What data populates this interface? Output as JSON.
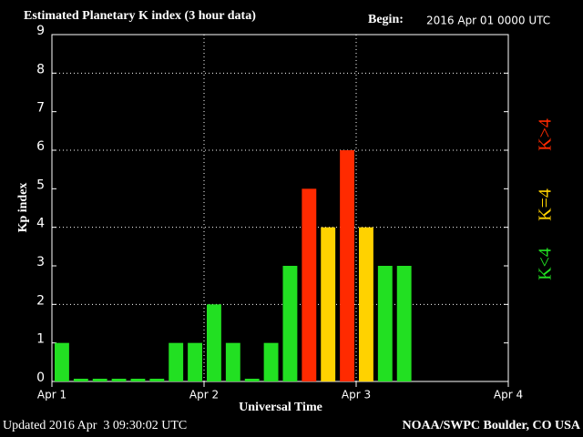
{
  "chart_data": {
    "type": "bar",
    "title": "Estimated Planetary K index (3 hour data)",
    "begin_label": "Begin:",
    "begin_value": "2016 Apr 01 0000 UTC",
    "y_label": "Kp index",
    "x_label": "Universal Time",
    "footer_left": "Updated 2016 Apr  3 09:30:02 UTC",
    "footer_right": "NOAA/SWPC Boulder, CO USA",
    "x": [
      0,
      3,
      6,
      9,
      12,
      15,
      18,
      21,
      24,
      27,
      30,
      33,
      36,
      39,
      42,
      45,
      48,
      51,
      54
    ],
    "values": [
      1,
      0,
      0,
      0,
      0,
      0,
      1,
      1,
      2,
      1,
      0,
      1,
      3,
      5,
      4,
      6,
      4,
      3,
      3
    ],
    "colors": [
      "#22e022",
      "#22e022",
      "#22e022",
      "#22e022",
      "#22e022",
      "#22e022",
      "#22e022",
      "#22e022",
      "#22e022",
      "#22e022",
      "#22e022",
      "#22e022",
      "#22e022",
      "#ff2a00",
      "#ffd200",
      "#ff2a00",
      "#ffd200",
      "#22e022",
      "#22e022"
    ],
    "xlim": [
      0,
      72
    ],
    "xticks": [
      {
        "value": 0,
        "label": "Apr 1"
      },
      {
        "value": 24,
        "label": "Apr 2"
      },
      {
        "value": 48,
        "label": "Apr 3"
      },
      {
        "value": 72,
        "label": "Apr 4"
      }
    ],
    "ylim": [
      0,
      9
    ],
    "yticks": [
      0,
      1,
      2,
      3,
      4,
      5,
      6,
      7,
      8,
      9
    ],
    "ygrid": [
      2,
      4,
      6,
      8
    ],
    "xgrid": [
      24,
      48
    ],
    "legend": [
      {
        "label": "K<4",
        "color": "#22e022"
      },
      {
        "label": "K=4",
        "color": "#ffd200"
      },
      {
        "label": "K>4",
        "color": "#ff2a00"
      }
    ]
  }
}
